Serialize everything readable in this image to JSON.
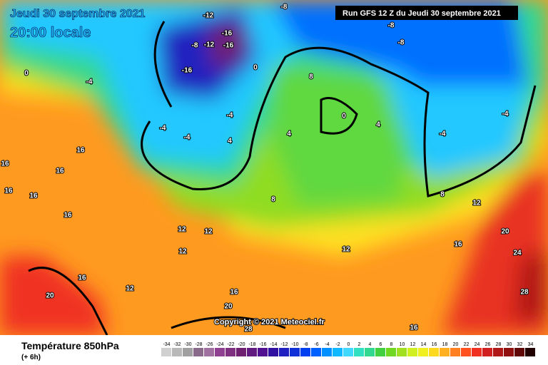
{
  "header": {
    "date": "Jeudi 30 septembre 2021",
    "time": "20:00 locale",
    "run": "Run GFS 12 Z du Jeudi 30 septembre 2021"
  },
  "footer": {
    "title": "Température 850hPa",
    "offset": "(+ 6h)",
    "copyright": "Copyright © 2021 Meteociel.fr"
  },
  "scale": {
    "values": [
      -34,
      -32,
      -30,
      -28,
      -26,
      -24,
      -22,
      -20,
      -18,
      -16,
      -14,
      -12,
      -10,
      -8,
      -6,
      -4,
      -2,
      0,
      2,
      4,
      6,
      8,
      10,
      12,
      14,
      16,
      18,
      20,
      22,
      24,
      26,
      28,
      30,
      32,
      34
    ],
    "colors": [
      "#d0d0d0",
      "#b8b8b8",
      "#a0a0a0",
      "#8a6a8a",
      "#a070a0",
      "#904090",
      "#803080",
      "#702070",
      "#601a80",
      "#501090",
      "#3010a0",
      "#2020c0",
      "#1030d8",
      "#0040f0",
      "#0060ff",
      "#0090ff",
      "#10b8ff",
      "#40d8ff",
      "#30e0c0",
      "#30d890",
      "#40d040",
      "#70d820",
      "#a0e020",
      "#d0f020",
      "#f0f020",
      "#ffd820",
      "#ffb020",
      "#ff8020",
      "#ff5020",
      "#f03020",
      "#d02020",
      "#b01818",
      "#901010",
      "#600808",
      "#200000"
    ]
  },
  "map_labels": [
    "-12",
    "-16",
    "-12",
    "-16",
    "-8",
    "-16",
    "-8",
    "-8",
    "-8",
    "-4",
    "0",
    "0",
    "-4",
    "-4",
    "-4",
    "4",
    "8",
    "0",
    "4",
    "4",
    "-4",
    "-4",
    "16",
    "16",
    "16",
    "16",
    "16",
    "16",
    "12",
    "12",
    "12",
    "8",
    "8",
    "12",
    "20",
    "24",
    "28",
    "16",
    "20",
    "12",
    "16",
    "20",
    "16",
    "12",
    "16",
    "28"
  ]
}
